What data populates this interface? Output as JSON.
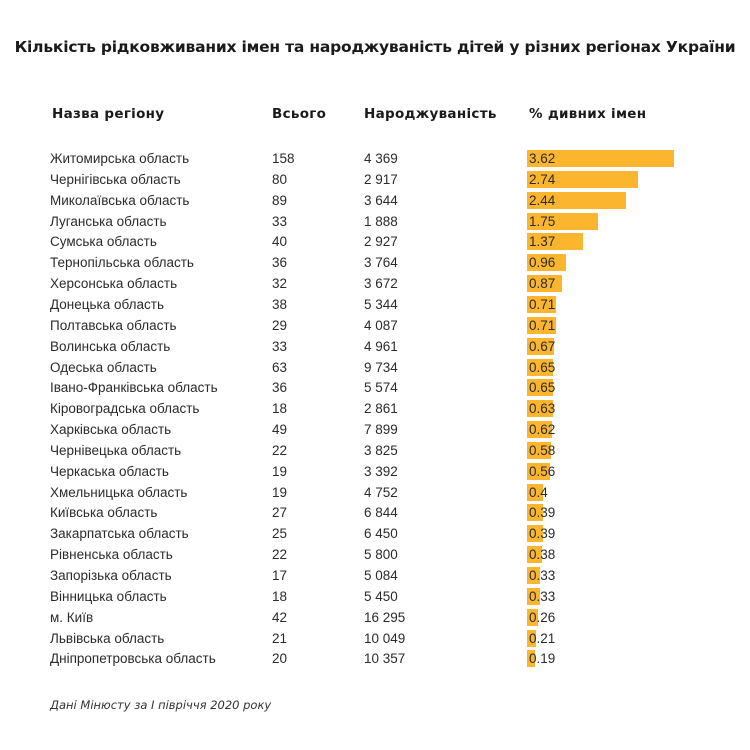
{
  "chart_data": {
    "type": "table",
    "title": "Кількість рідковживаних імен та народжуваність дітей у різних регіонах України",
    "columns": [
      "Назва регіону",
      "Всього",
      "Народжуваність",
      "% дивних імен"
    ],
    "bar_color": "#fcb52f",
    "pct_max": 3.62,
    "rows": [
      {
        "region": "Житомирська область",
        "total": "158",
        "births": "4 369",
        "pct": "3.62"
      },
      {
        "region": "Чернігівська область",
        "total": "80",
        "births": "2 917",
        "pct": "2.74"
      },
      {
        "region": "Миколаївська область",
        "total": "89",
        "births": "3 644",
        "pct": "2.44"
      },
      {
        "region": "Луганська область",
        "total": "33",
        "births": "1 888",
        "pct": "1.75"
      },
      {
        "region": "Сумська область",
        "total": "40",
        "births": "2 927",
        "pct": "1.37"
      },
      {
        "region": "Тернопільська область",
        "total": "36",
        "births": "3 764",
        "pct": "0.96"
      },
      {
        "region": "Херсонська область",
        "total": "32",
        "births": "3 672",
        "pct": "0.87"
      },
      {
        "region": "Донецька область",
        "total": "38",
        "births": "5 344",
        "pct": "0.71"
      },
      {
        "region": "Полтавська область",
        "total": "29",
        "births": "4 087",
        "pct": "0.71"
      },
      {
        "region": "Волинська область",
        "total": "33",
        "births": "4 961",
        "pct": "0.67"
      },
      {
        "region": "Одеська область",
        "total": "63",
        "births": "9 734",
        "pct": "0.65"
      },
      {
        "region": "Івано-Франківська область",
        "total": "36",
        "births": "5 574",
        "pct": "0.65"
      },
      {
        "region": "Кіровоградська область",
        "total": "18",
        "births": "2 861",
        "pct": "0.63"
      },
      {
        "region": "Харківська область",
        "total": "49",
        "births": "7 899",
        "pct": "0.62"
      },
      {
        "region": "Чернівецька область",
        "total": "22",
        "births": "3 825",
        "pct": "0.58"
      },
      {
        "region": "Черкаська область",
        "total": "19",
        "births": "3 392",
        "pct": "0.56"
      },
      {
        "region": "Хмельницька область",
        "total": "19",
        "births": "4 752",
        "pct": "0.4"
      },
      {
        "region": "Київська область",
        "total": "27",
        "births": "6 844",
        "pct": "0.39"
      },
      {
        "region": "Закарпатська область",
        "total": "25",
        "births": "6 450",
        "pct": "0.39"
      },
      {
        "region": "Рівненська область",
        "total": "22",
        "births": "5 800",
        "pct": "0.38"
      },
      {
        "region": "Запорізька область",
        "total": "17",
        "births": "5 084",
        "pct": "0.33"
      },
      {
        "region": "Вінницька область",
        "total": "18",
        "births": "5 450",
        "pct": "0.33"
      },
      {
        "region": "м. Київ",
        "total": "42",
        "births": "16 295",
        "pct": "0.26"
      },
      {
        "region": "Львівська область",
        "total": "21",
        "births": "10 049",
        "pct": "0.21"
      },
      {
        "region": "Дніпропетровська область",
        "total": "20",
        "births": "10 357",
        "pct": "0.19"
      }
    ],
    "note": "Дані Мінюсту за І півріччя 2020 року"
  }
}
